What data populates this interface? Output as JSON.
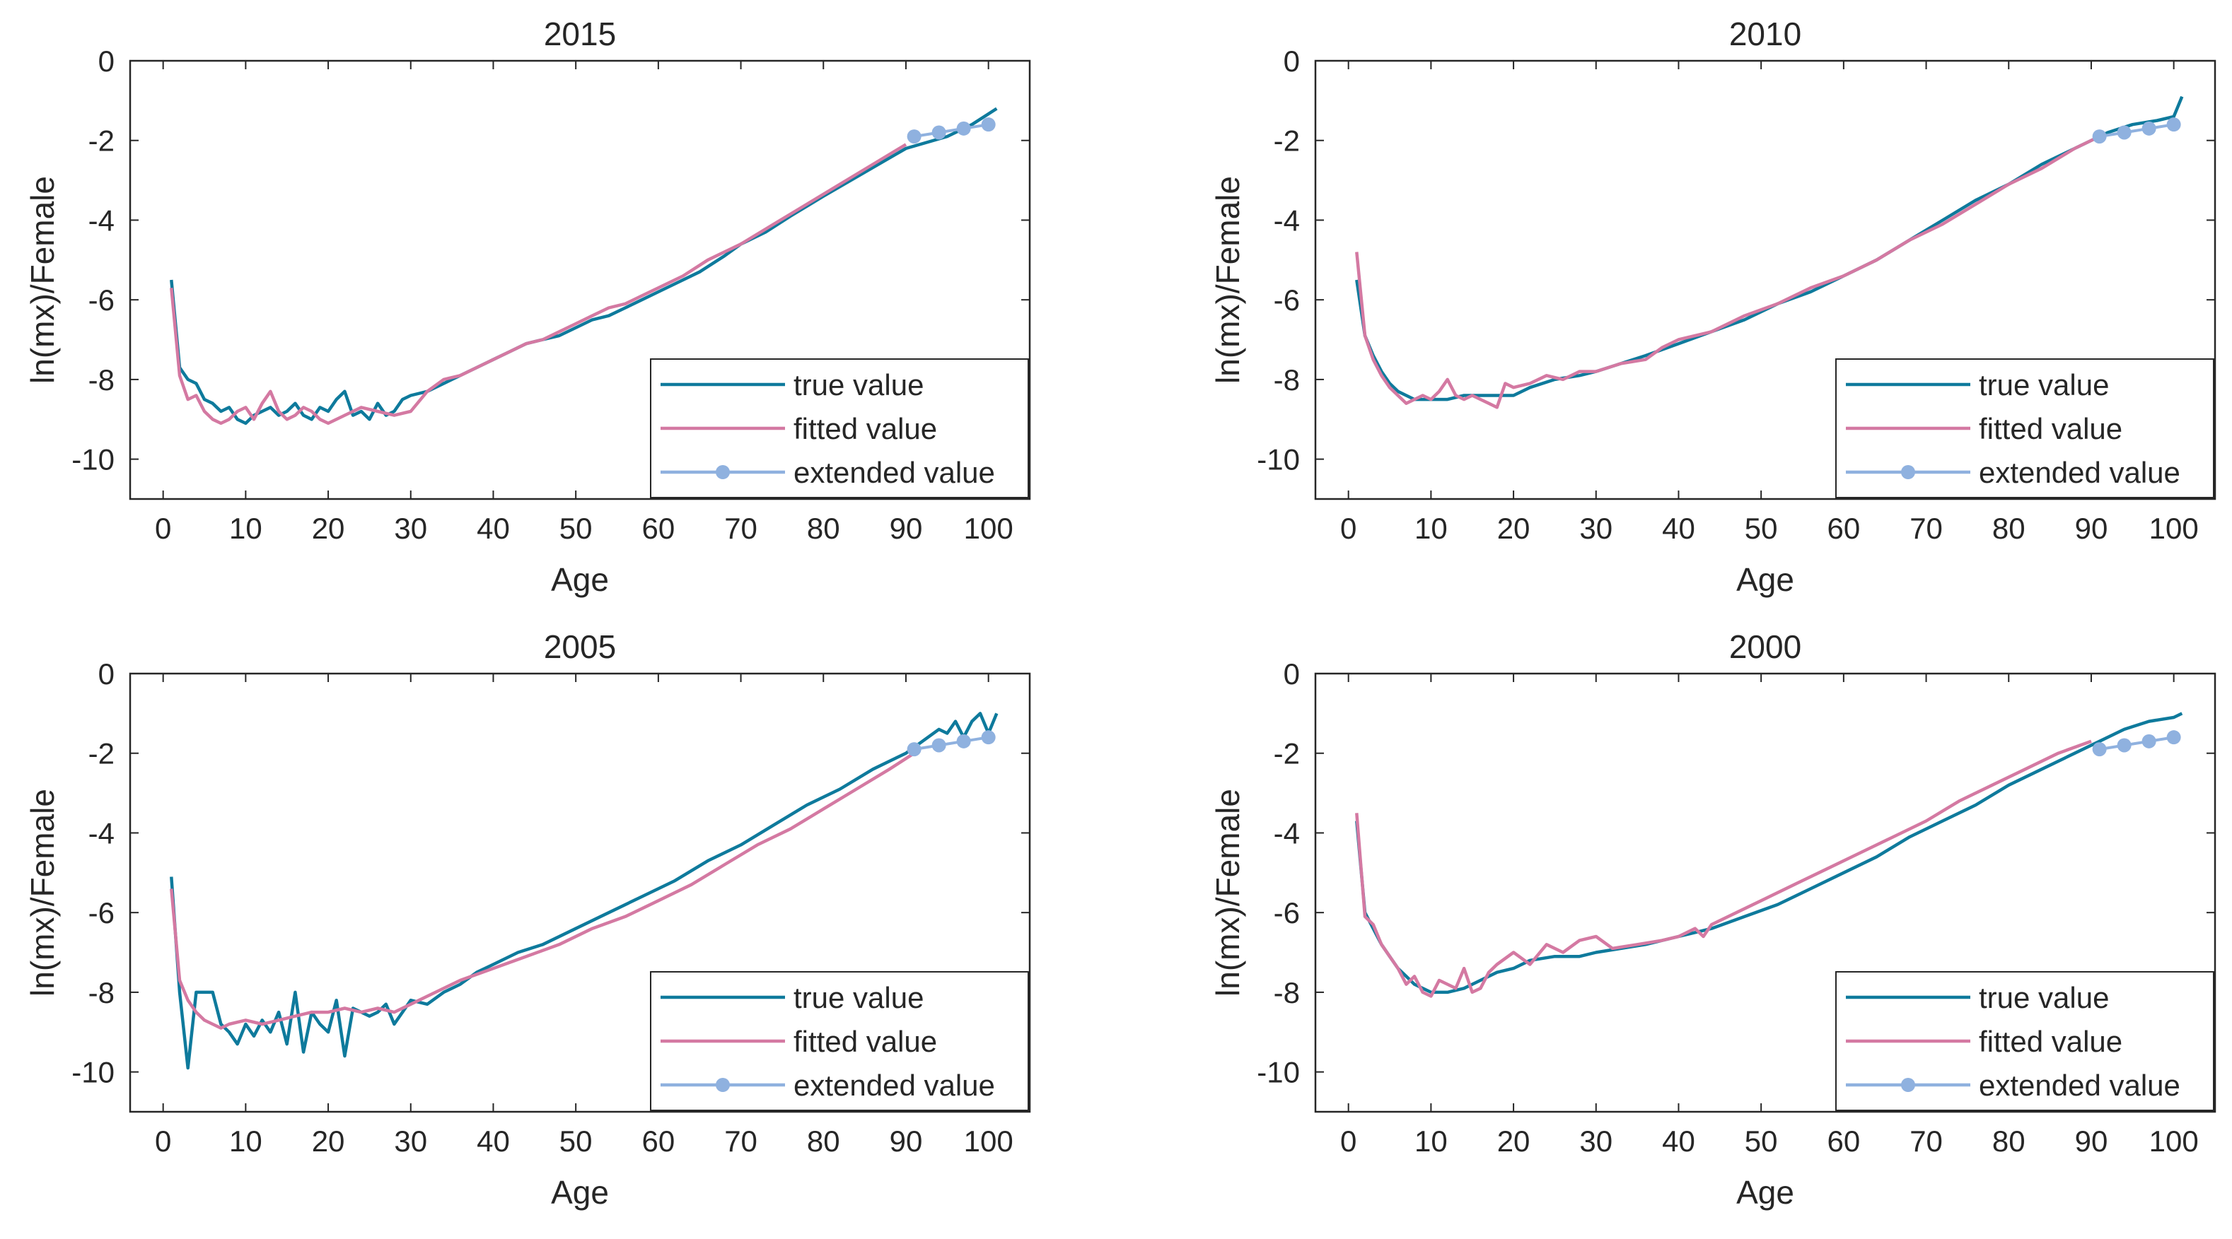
{
  "legend_labels": [
    "true value",
    "fitted value",
    "extended value"
  ],
  "colors": {
    "true": "#0e7a9c",
    "fitted": "#d479a2",
    "extended": "#8fb1df",
    "axis": "#262626"
  },
  "chart_data": [
    {
      "type": "line",
      "title": "2015",
      "xlabel": "Age",
      "ylabel": "ln(mx)/Female",
      "xlim": [
        -4,
        105
      ],
      "ylim": [
        -11,
        0
      ],
      "xticks": [
        0,
        10,
        20,
        30,
        40,
        50,
        60,
        70,
        80,
        90,
        100
      ],
      "yticks": [
        0,
        -2,
        -4,
        -6,
        -8,
        -10
      ],
      "grid": false,
      "legend_position": "bottom-right",
      "series": [
        {
          "name": "true value",
          "x": [
            1,
            2,
            3,
            4,
            5,
            6,
            7,
            8,
            9,
            10,
            11,
            12,
            13,
            14,
            15,
            16,
            17,
            18,
            19,
            20,
            21,
            22,
            23,
            24,
            25,
            26,
            27,
            28,
            29,
            30,
            32,
            35,
            38,
            40,
            42,
            44,
            46,
            48,
            50,
            52,
            54,
            56,
            58,
            60,
            62,
            65,
            68,
            70,
            73,
            76,
            80,
            85,
            90,
            95,
            98,
            101
          ],
          "y": [
            -5.5,
            -7.7,
            -8.0,
            -8.1,
            -8.5,
            -8.6,
            -8.8,
            -8.7,
            -9.0,
            -9.1,
            -8.9,
            -8.8,
            -8.7,
            -8.9,
            -8.8,
            -8.6,
            -8.9,
            -9.0,
            -8.7,
            -8.8,
            -8.5,
            -8.3,
            -8.9,
            -8.8,
            -9.0,
            -8.6,
            -8.9,
            -8.8,
            -8.5,
            -8.4,
            -8.3,
            -8.0,
            -7.7,
            -7.5,
            -7.3,
            -7.1,
            -7.0,
            -6.9,
            -6.7,
            -6.5,
            -6.4,
            -6.2,
            -6.0,
            -5.8,
            -5.6,
            -5.3,
            -4.9,
            -4.6,
            -4.3,
            -3.9,
            -3.4,
            -2.8,
            -2.2,
            -1.9,
            -1.6,
            -1.2
          ]
        },
        {
          "name": "fitted value",
          "x": [
            1,
            2,
            3,
            4,
            5,
            6,
            7,
            8,
            9,
            10,
            11,
            12,
            13,
            14,
            15,
            16,
            17,
            18,
            19,
            20,
            22,
            24,
            26,
            28,
            30,
            32,
            34,
            36,
            38,
            40,
            42,
            44,
            46,
            48,
            50,
            52,
            54,
            56,
            58,
            60,
            63,
            66,
            70,
            74,
            78,
            82,
            86,
            90
          ],
          "y": [
            -5.7,
            -7.9,
            -8.5,
            -8.4,
            -8.8,
            -9.0,
            -9.1,
            -9.0,
            -8.8,
            -8.7,
            -9.0,
            -8.6,
            -8.3,
            -8.8,
            -9.0,
            -8.9,
            -8.7,
            -8.8,
            -9.0,
            -9.1,
            -8.9,
            -8.7,
            -8.8,
            -8.9,
            -8.8,
            -8.3,
            -8.0,
            -7.9,
            -7.7,
            -7.5,
            -7.3,
            -7.1,
            -7.0,
            -6.8,
            -6.6,
            -6.4,
            -6.2,
            -6.1,
            -5.9,
            -5.7,
            -5.4,
            -5.0,
            -4.6,
            -4.1,
            -3.6,
            -3.1,
            -2.6,
            -2.1
          ]
        },
        {
          "name": "extended value",
          "x": [
            91,
            94,
            97,
            100
          ],
          "y": [
            -1.9,
            -1.8,
            -1.7,
            -1.6
          ]
        }
      ]
    },
    {
      "type": "line",
      "title": "2010",
      "xlabel": "Age",
      "ylabel": "ln(mx)/Female",
      "xlim": [
        -4,
        105
      ],
      "ylim": [
        -11,
        0
      ],
      "xticks": [
        0,
        10,
        20,
        30,
        40,
        50,
        60,
        70,
        80,
        90,
        100
      ],
      "yticks": [
        0,
        -2,
        -4,
        -6,
        -8,
        -10
      ],
      "grid": false,
      "legend_position": "bottom-right",
      "series": [
        {
          "name": "true value",
          "x": [
            1,
            2,
            3,
            4,
            5,
            6,
            7,
            8,
            9,
            10,
            12,
            14,
            16,
            18,
            20,
            22,
            25,
            28,
            30,
            33,
            36,
            40,
            44,
            48,
            52,
            56,
            60,
            64,
            68,
            72,
            76,
            80,
            84,
            88,
            92,
            95,
            98,
            100,
            101
          ],
          "y": [
            -5.5,
            -6.9,
            -7.4,
            -7.8,
            -8.1,
            -8.3,
            -8.4,
            -8.5,
            -8.5,
            -8.5,
            -8.5,
            -8.4,
            -8.4,
            -8.4,
            -8.4,
            -8.2,
            -8.0,
            -7.9,
            -7.8,
            -7.6,
            -7.4,
            -7.1,
            -6.8,
            -6.5,
            -6.1,
            -5.8,
            -5.4,
            -5.0,
            -4.5,
            -4.0,
            -3.5,
            -3.1,
            -2.6,
            -2.2,
            -1.8,
            -1.6,
            -1.5,
            -1.4,
            -0.9
          ]
        },
        {
          "name": "fitted value",
          "x": [
            1,
            2,
            3,
            4,
            5,
            6,
            7,
            8,
            9,
            10,
            11,
            12,
            13,
            14,
            15,
            16,
            17,
            18,
            19,
            20,
            22,
            24,
            26,
            28,
            30,
            33,
            36,
            38,
            40,
            44,
            48,
            52,
            56,
            60,
            64,
            68,
            72,
            76,
            80,
            84,
            88,
            91
          ],
          "y": [
            -4.8,
            -6.9,
            -7.5,
            -7.9,
            -8.2,
            -8.4,
            -8.6,
            -8.5,
            -8.4,
            -8.5,
            -8.3,
            -8.0,
            -8.4,
            -8.5,
            -8.4,
            -8.5,
            -8.6,
            -8.7,
            -8.1,
            -8.2,
            -8.1,
            -7.9,
            -8.0,
            -7.8,
            -7.8,
            -7.6,
            -7.5,
            -7.2,
            -7.0,
            -6.8,
            -6.4,
            -6.1,
            -5.7,
            -5.4,
            -5.0,
            -4.5,
            -4.1,
            -3.6,
            -3.1,
            -2.7,
            -2.2,
            -1.9
          ]
        },
        {
          "name": "extended value",
          "x": [
            91,
            94,
            97,
            100
          ],
          "y": [
            -1.9,
            -1.8,
            -1.7,
            -1.6
          ]
        }
      ]
    },
    {
      "type": "line",
      "title": "2005",
      "xlabel": "Age",
      "ylabel": "ln(mx)/Female",
      "xlim": [
        -4,
        105
      ],
      "ylim": [
        -11,
        0
      ],
      "xticks": [
        0,
        10,
        20,
        30,
        40,
        50,
        60,
        70,
        80,
        90,
        100
      ],
      "yticks": [
        0,
        -2,
        -4,
        -6,
        -8,
        -10
      ],
      "grid": false,
      "legend_position": "bottom-right",
      "series": [
        {
          "name": "true value",
          "x": [
            1,
            2,
            3,
            4,
            5,
            6,
            7,
            8,
            9,
            10,
            11,
            12,
            13,
            14,
            15,
            16,
            17,
            18,
            19,
            20,
            21,
            22,
            23,
            24,
            25,
            26,
            27,
            28,
            29,
            30,
            32,
            34,
            36,
            38,
            40,
            43,
            46,
            50,
            54,
            58,
            62,
            66,
            70,
            74,
            78,
            82,
            86,
            90,
            92,
            94,
            95,
            96,
            97,
            98,
            99,
            100,
            101
          ],
          "y": [
            -5.1,
            -8.0,
            -9.9,
            -8.0,
            -8.0,
            -8.0,
            -8.8,
            -9.0,
            -9.3,
            -8.8,
            -9.1,
            -8.7,
            -9.0,
            -8.5,
            -9.3,
            -8.0,
            -9.5,
            -8.5,
            -8.8,
            -9.0,
            -8.2,
            -9.6,
            -8.4,
            -8.5,
            -8.6,
            -8.5,
            -8.3,
            -8.8,
            -8.5,
            -8.2,
            -8.3,
            -8.0,
            -7.8,
            -7.5,
            -7.3,
            -7.0,
            -6.8,
            -6.4,
            -6.0,
            -5.6,
            -5.2,
            -4.7,
            -4.3,
            -3.8,
            -3.3,
            -2.9,
            -2.4,
            -2.0,
            -1.7,
            -1.4,
            -1.5,
            -1.2,
            -1.6,
            -1.2,
            -1.0,
            -1.5,
            -1.0
          ]
        },
        {
          "name": "fitted value",
          "x": [
            1,
            2,
            3,
            4,
            5,
            6,
            7,
            8,
            10,
            12,
            14,
            16,
            18,
            20,
            22,
            24,
            26,
            28,
            30,
            33,
            36,
            40,
            44,
            48,
            52,
            56,
            60,
            64,
            68,
            72,
            76,
            80,
            84,
            88,
            91
          ],
          "y": [
            -5.4,
            -7.7,
            -8.2,
            -8.5,
            -8.7,
            -8.8,
            -8.9,
            -8.8,
            -8.7,
            -8.8,
            -8.7,
            -8.6,
            -8.5,
            -8.5,
            -8.4,
            -8.5,
            -8.4,
            -8.5,
            -8.3,
            -8.0,
            -7.7,
            -7.4,
            -7.1,
            -6.8,
            -6.4,
            -6.1,
            -5.7,
            -5.3,
            -4.8,
            -4.3,
            -3.9,
            -3.4,
            -2.9,
            -2.4,
            -2.0
          ]
        },
        {
          "name": "extended value",
          "x": [
            91,
            94,
            97,
            100
          ],
          "y": [
            -1.9,
            -1.8,
            -1.7,
            -1.6
          ]
        }
      ]
    },
    {
      "type": "line",
      "title": "2000",
      "xlabel": "Age",
      "ylabel": "ln(mx)/Female",
      "xlim": [
        -4,
        105
      ],
      "ylim": [
        -11,
        0
      ],
      "xticks": [
        0,
        10,
        20,
        30,
        40,
        50,
        60,
        70,
        80,
        90,
        100
      ],
      "yticks": [
        0,
        -2,
        -4,
        -6,
        -8,
        -10
      ],
      "grid": false,
      "legend_position": "bottom-right",
      "series": [
        {
          "name": "true value",
          "x": [
            1,
            2,
            3,
            4,
            5,
            6,
            7,
            8,
            9,
            10,
            11,
            12,
            14,
            16,
            18,
            20,
            22,
            25,
            28,
            30,
            33,
            36,
            40,
            44,
            48,
            52,
            56,
            60,
            64,
            68,
            72,
            76,
            80,
            84,
            88,
            91,
            94,
            97,
            100,
            101
          ],
          "y": [
            -3.7,
            -6.0,
            -6.4,
            -6.8,
            -7.1,
            -7.4,
            -7.6,
            -7.8,
            -7.9,
            -8.0,
            -8.0,
            -8.0,
            -7.9,
            -7.7,
            -7.5,
            -7.4,
            -7.2,
            -7.1,
            -7.1,
            -7.0,
            -6.9,
            -6.8,
            -6.6,
            -6.4,
            -6.1,
            -5.8,
            -5.4,
            -5.0,
            -4.6,
            -4.1,
            -3.7,
            -3.3,
            -2.8,
            -2.4,
            -2.0,
            -1.7,
            -1.4,
            -1.2,
            -1.1,
            -1.0
          ]
        },
        {
          "name": "fitted value",
          "x": [
            1,
            2,
            3,
            4,
            5,
            6,
            7,
            8,
            9,
            10,
            11,
            12,
            13,
            14,
            15,
            16,
            17,
            18,
            20,
            22,
            24,
            26,
            28,
            30,
            32,
            35,
            38,
            40,
            42,
            43,
            44,
            47,
            50,
            54,
            58,
            62,
            66,
            70,
            74,
            78,
            82,
            86,
            90
          ],
          "y": [
            -3.5,
            -6.1,
            -6.3,
            -6.8,
            -7.1,
            -7.4,
            -7.8,
            -7.6,
            -8.0,
            -8.1,
            -7.7,
            -7.8,
            -7.9,
            -7.4,
            -8.0,
            -7.9,
            -7.5,
            -7.3,
            -7.0,
            -7.3,
            -6.8,
            -7.0,
            -6.7,
            -6.6,
            -6.9,
            -6.8,
            -6.7,
            -6.6,
            -6.4,
            -6.6,
            -6.3,
            -6.0,
            -5.7,
            -5.3,
            -4.9,
            -4.5,
            -4.1,
            -3.7,
            -3.2,
            -2.8,
            -2.4,
            -2.0,
            -1.7
          ]
        },
        {
          "name": "extended value",
          "x": [
            91,
            94,
            97,
            100
          ],
          "y": [
            -1.9,
            -1.8,
            -1.7,
            -1.6
          ]
        }
      ]
    }
  ]
}
